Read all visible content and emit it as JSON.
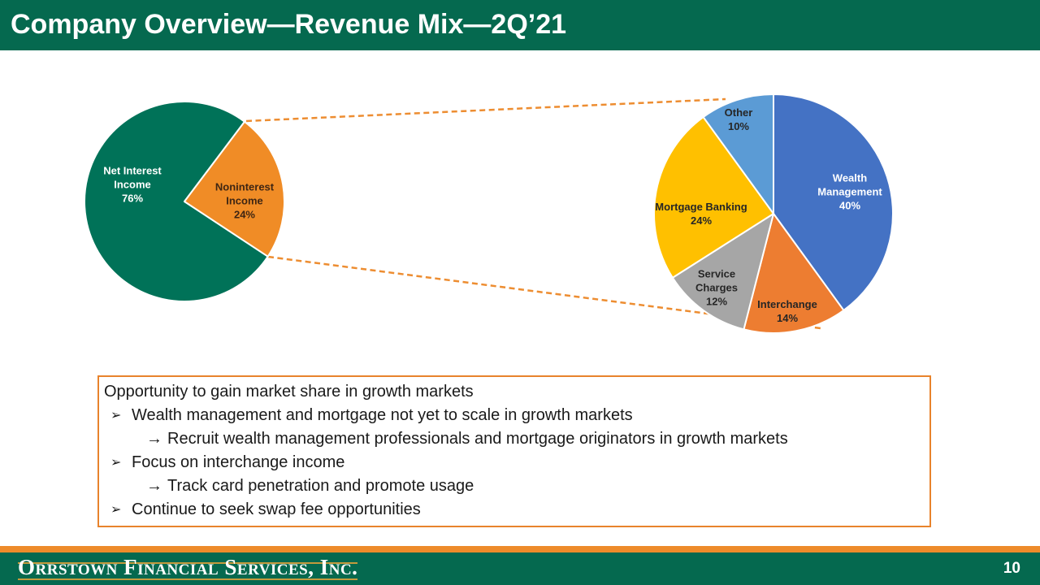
{
  "slide": {
    "title": "Company Overview—Revenue Mix—2Q’21",
    "page_number": "10",
    "footer_logo": "Orrstown Financial Services, Inc."
  },
  "colors": {
    "title_bar_green": "#05694F",
    "footer_green": "#05694F",
    "footer_accent_orange": "#EE8B2A",
    "logo_gold": "#C49A3C",
    "callout_border_orange": "#E8832C",
    "connector_orange": "#ED8D31"
  },
  "chart_data": [
    {
      "type": "pie",
      "name": "total-revenue-mix",
      "start_angle_deg": 123.4,
      "slices": [
        {
          "label": "Net Interest Income",
          "value": 76,
          "color": "#007258",
          "text_color": "#FFFFFF",
          "label_lines": [
            "Net Interest",
            "Income",
            "76%"
          ]
        },
        {
          "label": "Noninterest Income",
          "value": 24,
          "color": "#F08C26",
          "text_color": "#3F2613",
          "label_lines": [
            "Noninterest",
            "Income",
            "24%"
          ]
        }
      ]
    },
    {
      "type": "pie",
      "name": "noninterest-income-mix",
      "start_angle_deg": 0,
      "slices": [
        {
          "label": "Wealth Management",
          "value": 40,
          "color": "#4472C4",
          "text_color": "#FFFFFF",
          "label_lines": [
            "Wealth",
            "Management",
            "40%"
          ]
        },
        {
          "label": "Interchange",
          "value": 14,
          "color": "#ED7D31",
          "text_color": "#262626",
          "label_lines": [
            "Interchange",
            "14%"
          ]
        },
        {
          "label": "Service Charges",
          "value": 12,
          "color": "#A6A6A6",
          "text_color": "#262626",
          "label_lines": [
            "Service",
            "Charges",
            "12%"
          ]
        },
        {
          "label": "Mortgage Banking",
          "value": 24,
          "color": "#FFC000",
          "text_color": "#262626",
          "label_lines": [
            "Mortgage Banking",
            "24%"
          ]
        },
        {
          "label": "Other",
          "value": 10,
          "color": "#5B9BD5",
          "text_color": "#262626",
          "label_lines": [
            "Other",
            "10%"
          ]
        }
      ]
    }
  ],
  "callout_box": {
    "lines": [
      {
        "level": 0,
        "bullet": "",
        "text": "Opportunity to gain market share in growth markets"
      },
      {
        "level": 1,
        "bullet": "➢",
        "text": "Wealth management and mortgage not yet to scale in growth markets"
      },
      {
        "level": 2,
        "bullet": "→",
        "text": "Recruit wealth management professionals and mortgage originators in growth markets"
      },
      {
        "level": 1,
        "bullet": "➢",
        "text": "Focus on interchange income"
      },
      {
        "level": 2,
        "bullet": "→",
        "text": "Track card penetration and promote usage"
      },
      {
        "level": 1,
        "bullet": "➢",
        "text": "Continue to seek swap fee opportunities"
      }
    ]
  }
}
